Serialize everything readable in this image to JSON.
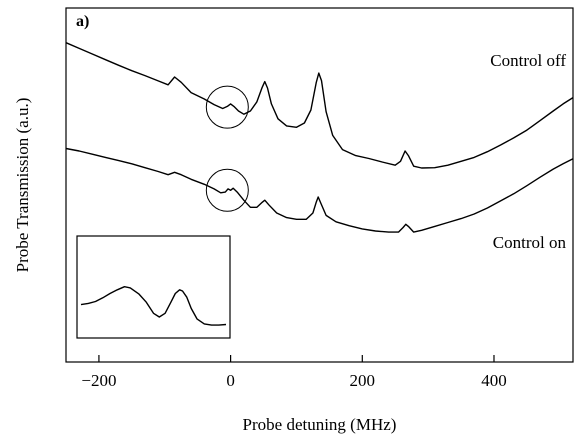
{
  "chart_data": {
    "type": "line",
    "panel_label": "a)",
    "xlabel": "Probe detuning (MHz)",
    "ylabel": "Probe Transmission (a.u.)",
    "xlim": [
      -250,
      520
    ],
    "ylim": [
      0,
      1
    ],
    "xticks": [
      -200,
      0,
      200,
      400
    ],
    "xtick_labels": [
      "−200",
      "0",
      "200",
      "400"
    ],
    "grid": false,
    "series": [
      {
        "name": "Control off",
        "color": "#000000",
        "points": [
          [
            -250,
            0.902
          ],
          [
            -230,
            0.886
          ],
          [
            -210,
            0.87
          ],
          [
            -190,
            0.854
          ],
          [
            -170,
            0.838
          ],
          [
            -150,
            0.823
          ],
          [
            -130,
            0.809
          ],
          [
            -110,
            0.794
          ],
          [
            -95,
            0.783
          ],
          [
            -85,
            0.805
          ],
          [
            -75,
            0.79
          ],
          [
            -60,
            0.761
          ],
          [
            -40,
            0.743
          ],
          [
            -25,
            0.727
          ],
          [
            -12,
            0.716
          ],
          [
            -5,
            0.722
          ],
          [
            0,
            0.729
          ],
          [
            5,
            0.722
          ],
          [
            12,
            0.709
          ],
          [
            20,
            0.7
          ],
          [
            30,
            0.709
          ],
          [
            40,
            0.735
          ],
          [
            48,
            0.776
          ],
          [
            52,
            0.792
          ],
          [
            56,
            0.774
          ],
          [
            62,
            0.729
          ],
          [
            72,
            0.687
          ],
          [
            85,
            0.667
          ],
          [
            100,
            0.663
          ],
          [
            112,
            0.675
          ],
          [
            122,
            0.712
          ],
          [
            130,
            0.789
          ],
          [
            134,
            0.816
          ],
          [
            138,
            0.795
          ],
          [
            145,
            0.707
          ],
          [
            155,
            0.64
          ],
          [
            170,
            0.6
          ],
          [
            190,
            0.583
          ],
          [
            210,
            0.575
          ],
          [
            230,
            0.565
          ],
          [
            250,
            0.556
          ],
          [
            258,
            0.567
          ],
          [
            265,
            0.596
          ],
          [
            270,
            0.583
          ],
          [
            278,
            0.553
          ],
          [
            290,
            0.548
          ],
          [
            310,
            0.549
          ],
          [
            330,
            0.556
          ],
          [
            350,
            0.567
          ],
          [
            370,
            0.578
          ],
          [
            390,
            0.594
          ],
          [
            410,
            0.613
          ],
          [
            430,
            0.633
          ],
          [
            450,
            0.655
          ],
          [
            470,
            0.682
          ],
          [
            490,
            0.709
          ],
          [
            505,
            0.729
          ],
          [
            520,
            0.747
          ]
        ]
      },
      {
        "name": "Control on",
        "color": "#000000",
        "points": [
          [
            -250,
            0.603
          ],
          [
            -230,
            0.596
          ],
          [
            -210,
            0.587
          ],
          [
            -190,
            0.578
          ],
          [
            -170,
            0.569
          ],
          [
            -150,
            0.56
          ],
          [
            -130,
            0.549
          ],
          [
            -110,
            0.538
          ],
          [
            -95,
            0.529
          ],
          [
            -85,
            0.536
          ],
          [
            -75,
            0.529
          ],
          [
            -60,
            0.516
          ],
          [
            -40,
            0.502
          ],
          [
            -25,
            0.489
          ],
          [
            -15,
            0.478
          ],
          [
            -8,
            0.48
          ],
          [
            -4,
            0.489
          ],
          [
            0,
            0.485
          ],
          [
            4,
            0.491
          ],
          [
            10,
            0.48
          ],
          [
            20,
            0.457
          ],
          [
            30,
            0.437
          ],
          [
            40,
            0.437
          ],
          [
            48,
            0.451
          ],
          [
            52,
            0.457
          ],
          [
            58,
            0.444
          ],
          [
            70,
            0.421
          ],
          [
            85,
            0.408
          ],
          [
            100,
            0.403
          ],
          [
            115,
            0.403
          ],
          [
            125,
            0.421
          ],
          [
            130,
            0.451
          ],
          [
            133,
            0.466
          ],
          [
            137,
            0.449
          ],
          [
            145,
            0.414
          ],
          [
            160,
            0.396
          ],
          [
            180,
            0.385
          ],
          [
            200,
            0.376
          ],
          [
            220,
            0.37
          ],
          [
            240,
            0.367
          ],
          [
            255,
            0.367
          ],
          [
            262,
            0.38
          ],
          [
            266,
            0.389
          ],
          [
            270,
            0.383
          ],
          [
            278,
            0.367
          ],
          [
            290,
            0.372
          ],
          [
            310,
            0.383
          ],
          [
            330,
            0.394
          ],
          [
            350,
            0.405
          ],
          [
            370,
            0.418
          ],
          [
            390,
            0.435
          ],
          [
            410,
            0.455
          ],
          [
            430,
            0.475
          ],
          [
            450,
            0.498
          ],
          [
            470,
            0.522
          ],
          [
            490,
            0.545
          ],
          [
            505,
            0.56
          ],
          [
            520,
            0.574
          ]
        ]
      }
    ],
    "annotations": [
      {
        "type": "circle",
        "x": -5,
        "y": 0.72,
        "label": ""
      },
      {
        "type": "circle",
        "x": -5,
        "y": 0.485,
        "label": ""
      }
    ],
    "inset": {
      "description_free": true,
      "points": [
        [
          0.0,
          0.28
        ],
        [
          0.05,
          0.3
        ],
        [
          0.1,
          0.33
        ],
        [
          0.15,
          0.39
        ],
        [
          0.2,
          0.46
        ],
        [
          0.25,
          0.52
        ],
        [
          0.3,
          0.57
        ],
        [
          0.34,
          0.55
        ],
        [
          0.4,
          0.45
        ],
        [
          0.45,
          0.32
        ],
        [
          0.5,
          0.14
        ],
        [
          0.54,
          0.08
        ],
        [
          0.58,
          0.14
        ],
        [
          0.62,
          0.32
        ],
        [
          0.65,
          0.46
        ],
        [
          0.68,
          0.52
        ],
        [
          0.7,
          0.5
        ],
        [
          0.73,
          0.4
        ],
        [
          0.76,
          0.22
        ],
        [
          0.8,
          0.05
        ],
        [
          0.85,
          -0.03
        ],
        [
          0.9,
          -0.05
        ],
        [
          0.95,
          -0.05
        ],
        [
          1.0,
          -0.04
        ]
      ]
    }
  }
}
